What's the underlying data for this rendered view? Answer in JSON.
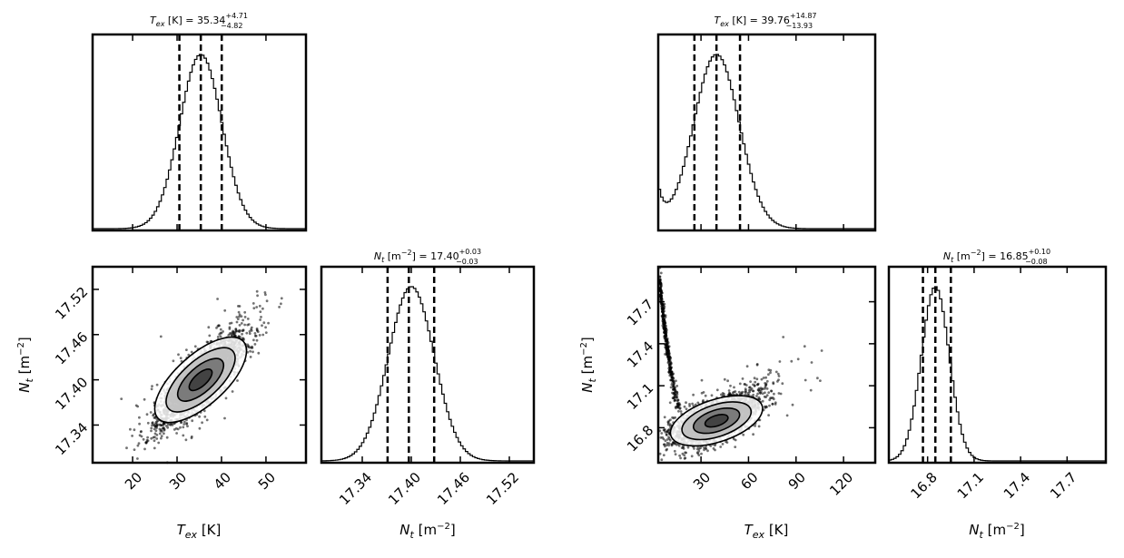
{
  "figure": {
    "background": "#ffffff",
    "line_color": "#000000"
  },
  "chart_data": [
    {
      "id": "left-tex-hist",
      "type": "histogram",
      "title_prefix": "T",
      "title_sub": "ex",
      "title_unit": " [K] = 35.34",
      "title_sup": "+4.71",
      "title_inf": "−4.82",
      "xlim": [
        11,
        59
      ],
      "shape": "gaussian",
      "mean": 35.34,
      "sd": 4.75,
      "quantile_lines": [
        30.52,
        35.34,
        40.05
      ],
      "ticks": [
        20,
        30,
        40,
        50
      ],
      "tick_labels_shown": false
    },
    {
      "id": "left-scatter",
      "type": "scatter",
      "x_label_main": "T",
      "x_label_sub": "ex",
      "x_label_unit": " [K]",
      "y_label_main": "N",
      "y_label_sub": "t",
      "y_label_unit": " [m",
      "y_label_sup": "−2",
      "y_label_close": "]",
      "xlim": [
        11,
        59
      ],
      "ylim": [
        17.29,
        17.55
      ],
      "x_ticks": [
        "20",
        "30",
        "40",
        "50"
      ],
      "y_ticks": [
        "17.34",
        "17.40",
        "17.46",
        "17.52"
      ],
      "x_tick_values": [
        20,
        30,
        40,
        50
      ],
      "y_tick_values": [
        17.34,
        17.4,
        17.46,
        17.52
      ],
      "center": [
        35.3,
        17.4
      ],
      "sd": [
        4.8,
        0.03
      ],
      "correlation": 0.85
    },
    {
      "id": "left-nt-hist",
      "type": "histogram",
      "title_prefix": "N",
      "title_sub": "t",
      "title_unit": " [m",
      "title_unit_sup": "−2",
      "title_unit_rest": "] = 17.40",
      "title_sup": "+0.03",
      "title_inf": "−0.03",
      "x_label_main": "N",
      "x_label_sub": "t",
      "x_label_unit": " [m",
      "x_label_sup": "−2",
      "x_label_close": "]",
      "xlim": [
        17.29,
        17.55
      ],
      "shape": "gaussian",
      "mean": 17.4,
      "sd": 0.028,
      "quantile_lines": [
        17.371,
        17.397,
        17.428
      ],
      "ticks": [
        "17.34",
        "17.40",
        "17.46",
        "17.52"
      ],
      "tick_values": [
        17.34,
        17.4,
        17.46,
        17.52
      ]
    },
    {
      "id": "right-tex-hist",
      "type": "histogram",
      "title_prefix": "T",
      "title_sub": "ex",
      "title_unit": " [K] = 39.76",
      "title_sup": "+14.87",
      "title_inf": "−13.93",
      "xlim": [
        3,
        140
      ],
      "shape": "gaussian_with_left_tail",
      "mean": 39.76,
      "sd": 14.4,
      "quantile_lines": [
        25.83,
        39.76,
        54.63
      ],
      "ticks": [
        30,
        60,
        90,
        120
      ],
      "tick_labels_shown": false
    },
    {
      "id": "right-scatter",
      "type": "scatter",
      "x_label_main": "T",
      "x_label_sub": "ex",
      "x_label_unit": " [K]",
      "y_label_main": "N",
      "y_label_sub": "t",
      "y_label_unit": " [m",
      "y_label_sup": "−2",
      "y_label_close": "]",
      "xlim": [
        3,
        140
      ],
      "ylim": [
        16.55,
        17.95
      ],
      "x_ticks": [
        "30",
        "60",
        "90",
        "120"
      ],
      "y_ticks": [
        "16.8",
        "17.1",
        "17.4",
        "17.7"
      ],
      "x_tick_values": [
        30,
        60,
        90,
        120
      ],
      "y_tick_values": [
        16.8,
        17.1,
        17.4,
        17.7
      ],
      "center": [
        39.8,
        16.85
      ],
      "sd": [
        14.4,
        0.09
      ],
      "correlation": 0.6
    },
    {
      "id": "right-nt-hist",
      "type": "histogram",
      "title_prefix": "N",
      "title_sub": "t",
      "title_unit": " [m",
      "title_unit_sup": "−2",
      "title_unit_rest": "] = 16.85",
      "title_sup": "+0.10",
      "title_inf": "−0.08",
      "x_label_main": "N",
      "x_label_sub": "t",
      "x_label_unit": " [m",
      "x_label_sup": "−2",
      "x_label_close": "]",
      "xlim": [
        16.55,
        17.95
      ],
      "shape": "gaussian",
      "mean": 16.85,
      "sd": 0.09,
      "quantile_lines": [
        16.77,
        16.85,
        16.95
      ],
      "ticks": [
        "16.8",
        "17.1",
        "17.4",
        "17.7"
      ],
      "tick_values": [
        16.8,
        17.1,
        17.4,
        17.7
      ]
    }
  ]
}
